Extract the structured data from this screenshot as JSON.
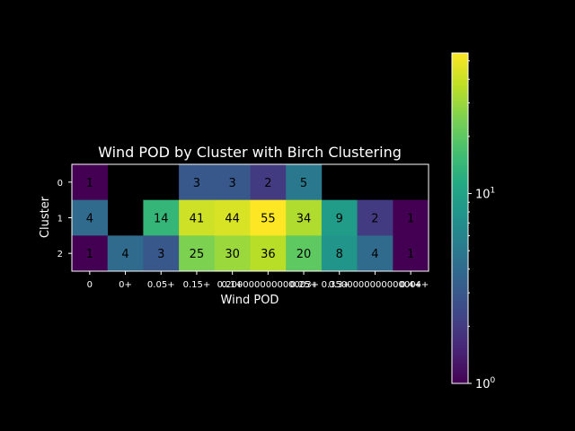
{
  "chart_data": {
    "type": "heatmap",
    "title": "Wind POD by Cluster with Birch Clustering",
    "xlabel": "Wind POD",
    "ylabel": "Cluster",
    "x_categories": [
      "0",
      "0+",
      "0.05+",
      "0.15+",
      "0.1+",
      "0.200000000000003+",
      "0.25+",
      "0.3+",
      "0.3500000000000004+",
      "0.4+"
    ],
    "x_tick_labels": [
      "0",
      "0+",
      "0.05+",
      "0.15+",
      "0.1+",
      "0.200000000000003+",
      "0.25+",
      "0.3+",
      "0.3500000000000004+",
      "0.4+"
    ],
    "y_categories": [
      "0",
      "1",
      "2"
    ],
    "values": [
      [
        1,
        null,
        null,
        3,
        3,
        2,
        5,
        null,
        null,
        null
      ],
      [
        4,
        null,
        14,
        41,
        44,
        55,
        34,
        9,
        2,
        1
      ],
      [
        1,
        4,
        3,
        25,
        30,
        36,
        20,
        8,
        4,
        1
      ]
    ],
    "colorbar": {
      "scale": "log",
      "colormap": "viridis",
      "min": 1,
      "max": 55,
      "tick_labels": [
        {
          "value": 1,
          "base": "10",
          "exp": "0"
        },
        {
          "value": 10,
          "base": "10",
          "exp": "1"
        }
      ]
    }
  }
}
